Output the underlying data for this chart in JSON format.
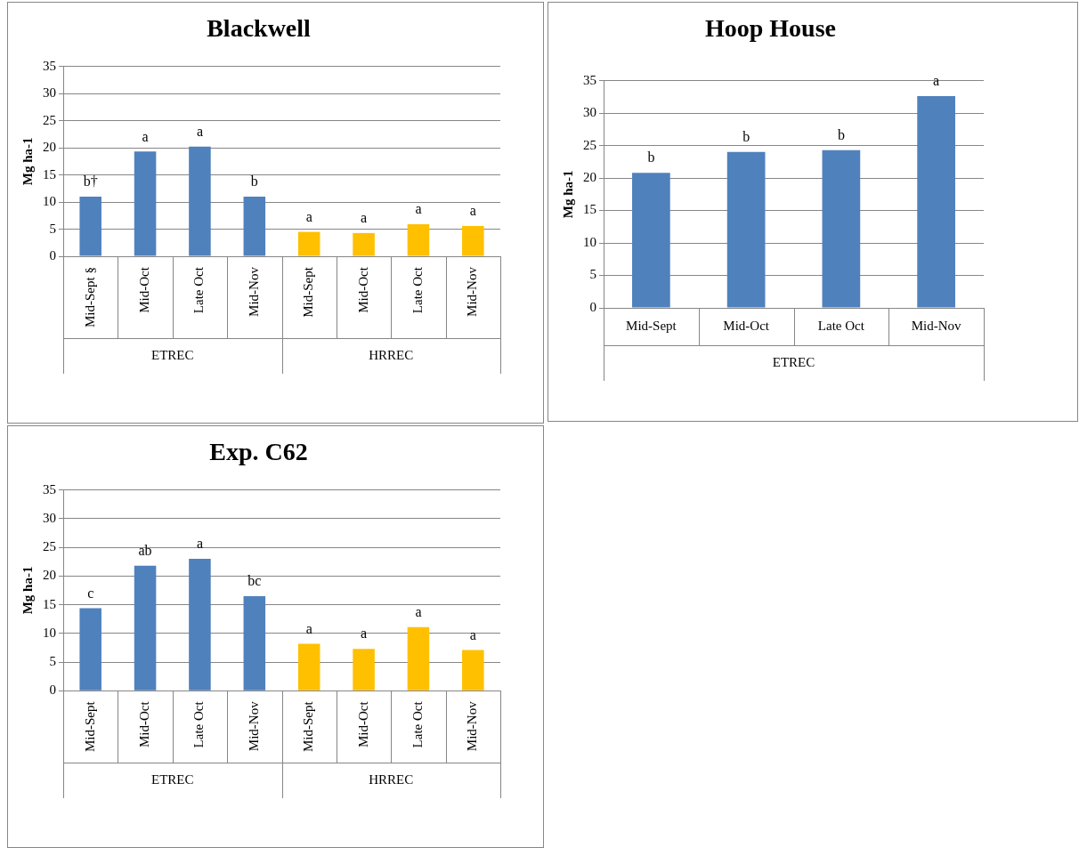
{
  "chart_data": [
    {
      "type": "bar",
      "title": "Blackwell",
      "ylabel": "Mg ha-1",
      "categories": [
        "Mid-Sept §",
        "Mid-Oct",
        "Late Oct",
        "Mid-Nov",
        "Mid-Sept",
        "Mid-Oct",
        "Late Oct",
        "Mid-Nov"
      ],
      "values": [
        11,
        19.3,
        20.2,
        11,
        4.5,
        4.3,
        5.9,
        5.6
      ],
      "colors": [
        "#4f81bd",
        "#4f81bd",
        "#4f81bd",
        "#4f81bd",
        "#ffc000",
        "#ffc000",
        "#ffc000",
        "#ffc000"
      ],
      "value_labels": [
        "b†",
        "a",
        "a",
        "b",
        "a",
        "a",
        "a",
        "a"
      ],
      "annotations": [
        "ETREC",
        "HRREC"
      ],
      "ylim": [
        0,
        35
      ],
      "yticks": [
        0,
        5,
        10,
        15,
        20,
        25,
        30,
        35
      ],
      "grid": "y",
      "legend": false
    },
    {
      "type": "bar",
      "title": "Hoop House",
      "ylabel": "Mg ha-1",
      "categories": [
        "Mid-Sept",
        "Mid-Oct",
        "Late Oct",
        "Mid-Nov"
      ],
      "values": [
        20.8,
        24,
        24.3,
        32.6
      ],
      "colors": [
        "#4f81bd",
        "#4f81bd",
        "#4f81bd",
        "#4f81bd"
      ],
      "value_labels": [
        "b",
        "b",
        "b",
        "a"
      ],
      "annotations": [
        "ETREC"
      ],
      "ylim": [
        0,
        35
      ],
      "yticks": [
        0,
        5,
        10,
        15,
        20,
        25,
        30,
        35
      ],
      "grid": "y",
      "legend": false
    },
    {
      "type": "bar",
      "title": "Exp. C62",
      "ylabel": "Mg ha-1",
      "categories": [
        "Mid-Sept",
        "Mid-Oct",
        "Late Oct",
        "Mid-Nov",
        "Mid-Sept",
        "Mid-Oct",
        "Late Oct",
        "Mid-Nov"
      ],
      "values": [
        14.4,
        21.8,
        23,
        16.5,
        8.2,
        7.3,
        11.1,
        7.1
      ],
      "colors": [
        "#4f81bd",
        "#4f81bd",
        "#4f81bd",
        "#4f81bd",
        "#ffc000",
        "#ffc000",
        "#ffc000",
        "#ffc000"
      ],
      "value_labels": [
        "c",
        "ab",
        "a",
        "bc",
        "a",
        "a",
        "a",
        "a"
      ],
      "annotations": [
        "ETREC",
        "HRREC"
      ],
      "ylim": [
        0,
        35
      ],
      "yticks": [
        0,
        5,
        10,
        15,
        20,
        25,
        30,
        35
      ],
      "grid": "y",
      "legend": false
    }
  ]
}
